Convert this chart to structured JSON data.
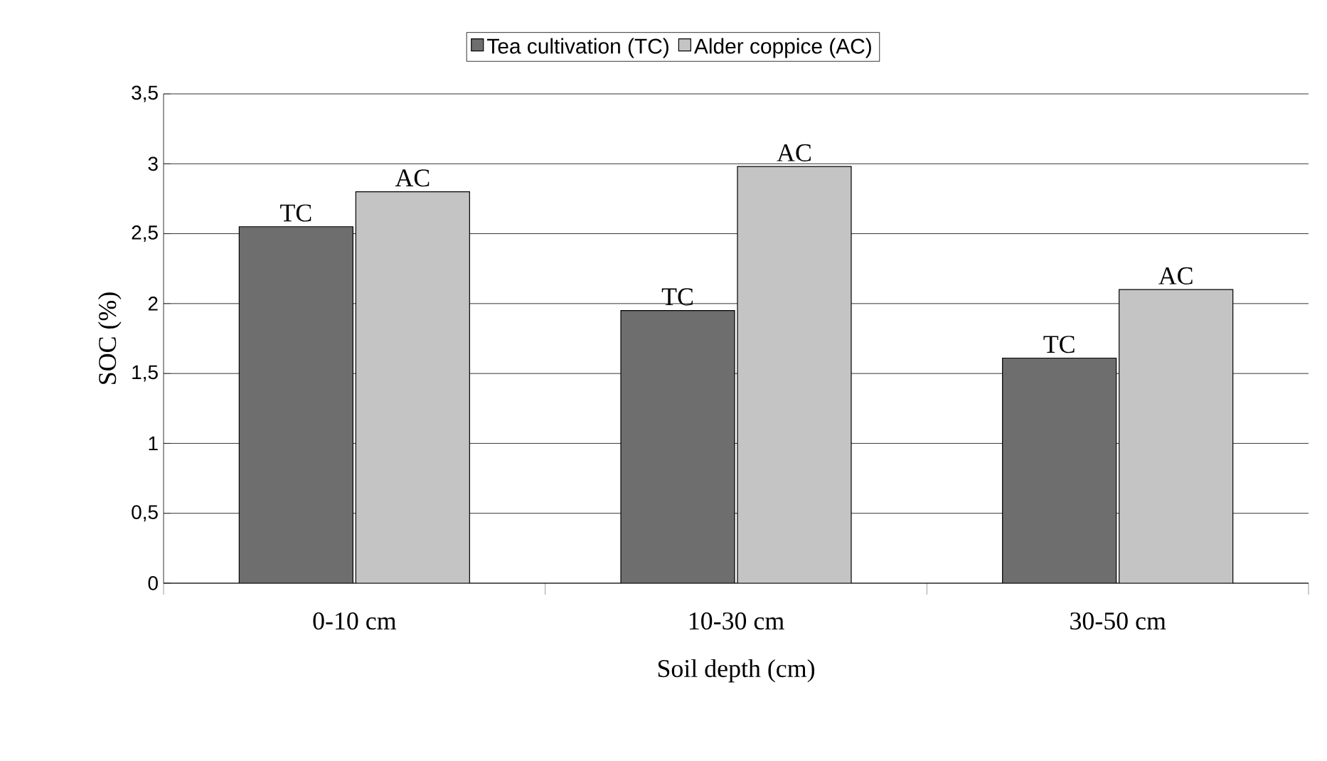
{
  "chart_data": {
    "type": "bar",
    "xlabel": "Soil depth (cm)",
    "ylabel": "SOC (%)",
    "categories": [
      "0-10 cm",
      "10-30 cm",
      "30-50 cm"
    ],
    "series": [
      {
        "name": "Tea cultivation (TC)",
        "color": "#6e6e6e",
        "values": [
          2.55,
          1.95,
          1.61
        ],
        "value_labels": [
          "TC",
          "TC",
          "TC"
        ]
      },
      {
        "name": "Alder coppice (AC)",
        "color": "#c4c4c4",
        "values": [
          2.8,
          2.98,
          2.1
        ],
        "value_labels": [
          "AC",
          "AC",
          "AC"
        ]
      }
    ],
    "ylim": [
      0,
      3.5
    ],
    "yticks": [
      0,
      {
        "value": 0.5,
        "label": "0,5"
      },
      1,
      {
        "value": 1.5,
        "label": "1,5"
      },
      2,
      {
        "value": 2.5,
        "label": "2,5"
      },
      3,
      {
        "value": 3.5,
        "label": "3,5"
      }
    ],
    "grid": "y",
    "legend": "top"
  }
}
